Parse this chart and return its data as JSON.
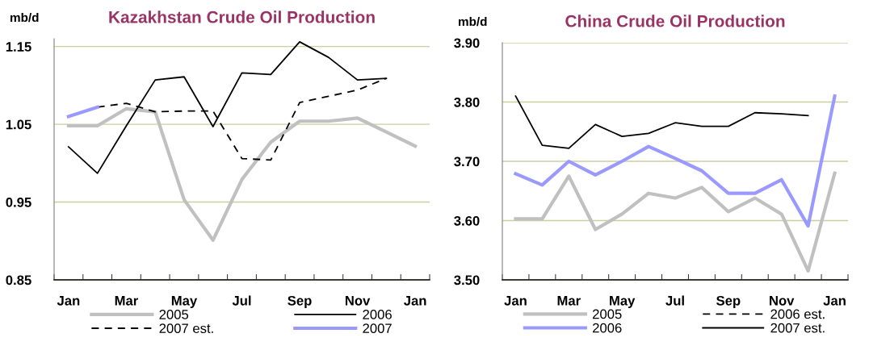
{
  "chart_data": [
    {
      "type": "line",
      "title": "Kazakhstan Crude Oil Production",
      "ylabel": "mb/d",
      "categories": [
        "Jan",
        null,
        "Mar",
        null,
        "May",
        null,
        "Jul",
        null,
        "Sep",
        null,
        "Nov",
        null,
        "Jan"
      ],
      "series": [
        {
          "name": "2005",
          "color": "#c0c0c0",
          "line_style": "solid",
          "values": [
            1.048,
            1.048,
            1.07,
            1.066,
            0.953,
            0.901,
            0.979,
            1.027,
            1.054,
            1.054,
            1.058,
            1.04,
            1.022
          ]
        },
        {
          "name": "2006",
          "color": "#000000",
          "line_style": "solid",
          "values": [
            1.021,
            0.987,
            1.048,
            1.107,
            1.111,
            1.047,
            1.116,
            1.114,
            1.156,
            1.136,
            1.107,
            1.109,
            null
          ]
        },
        {
          "name": "2007 est.",
          "color": "#000000",
          "line_style": "dashed",
          "values": [
            null,
            1.072,
            1.077,
            1.066,
            1.067,
            1.067,
            1.006,
            1.004,
            1.078,
            1.086,
            1.094,
            1.109,
            null
          ]
        },
        {
          "name": "2007",
          "color": "#9999ff",
          "line_style": "solid",
          "values": [
            1.06,
            1.072,
            null,
            null,
            null,
            null,
            null,
            null,
            null,
            null,
            null,
            null,
            null
          ]
        }
      ],
      "ylim": [
        0.85,
        1.16
      ],
      "yticks": [
        {
          "value": 0.85,
          "label": "0.85"
        },
        {
          "value": 0.95,
          "label": "0.95"
        },
        {
          "value": 1.05,
          "label": "1.05"
        },
        {
          "value": 1.15,
          "label": "1.15"
        }
      ],
      "grid": "y",
      "legend": "bottom"
    },
    {
      "type": "line",
      "title": "China Crude Oil Production",
      "ylabel": "mb/d",
      "categories": [
        "Jan",
        null,
        "Mar",
        null,
        "May",
        null,
        "Jul",
        null,
        "Sep",
        null,
        "Nov",
        null,
        "Jan"
      ],
      "series": [
        {
          "name": "2005",
          "color": "#c0c0c0",
          "line_style": "solid",
          "values": [
            3.603,
            3.603,
            3.675,
            3.585,
            3.611,
            3.646,
            3.638,
            3.656,
            3.615,
            3.638,
            3.611,
            3.515,
            3.68
          ]
        },
        {
          "name": "2006 est.",
          "color": "#000000",
          "line_style": "dashed",
          "values": [
            null,
            null,
            null,
            null,
            null,
            null,
            null,
            null,
            null,
            null,
            null,
            null,
            null
          ]
        },
        {
          "name": "2006",
          "color": "#9999ff",
          "line_style": "solid",
          "values": [
            3.679,
            3.66,
            3.7,
            3.677,
            3.7,
            3.725,
            3.705,
            3.684,
            3.646,
            3.646,
            3.669,
            3.591,
            3.81
          ]
        },
        {
          "name": "2007 est.",
          "color": "#000000",
          "line_style": "solid",
          "values": [
            3.81,
            3.727,
            3.722,
            3.762,
            3.742,
            3.747,
            3.765,
            3.759,
            3.759,
            3.782,
            3.78,
            3.777,
            null
          ]
        }
      ],
      "ylim": [
        3.5,
        3.9
      ],
      "yticks": [
        {
          "value": 3.5,
          "label": "3.50"
        },
        {
          "value": 3.6,
          "label": "3.60"
        },
        {
          "value": 3.7,
          "label": "3.70"
        },
        {
          "value": 3.8,
          "label": "3.80"
        },
        {
          "value": 3.9,
          "label": "3.90"
        }
      ],
      "grid": "y",
      "legend": "bottom"
    }
  ]
}
